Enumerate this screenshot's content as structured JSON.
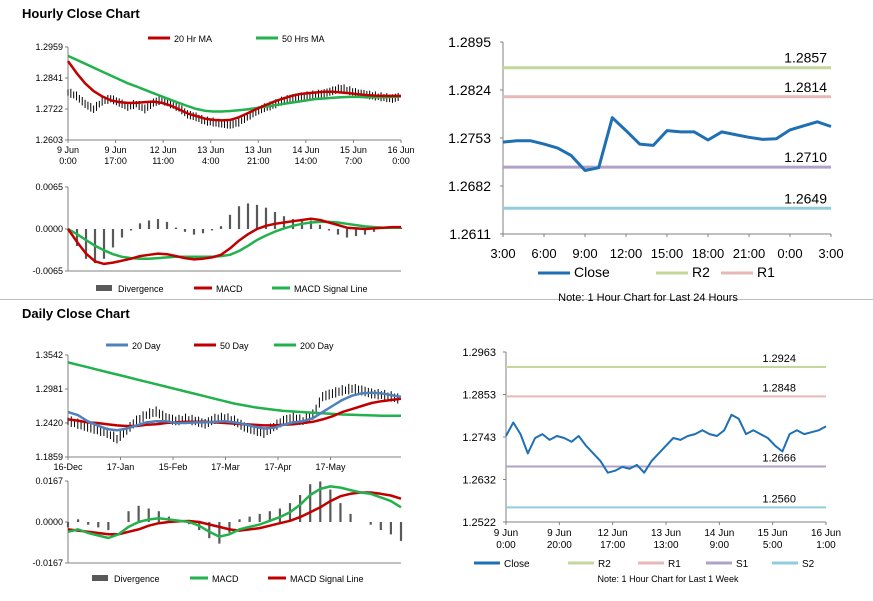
{
  "sections": {
    "hourly_title": "Hourly Close Chart",
    "daily_title": "Daily Close Chart"
  },
  "chart_data": [
    {
      "id": "hourly-price",
      "type": "line",
      "ylim": [
        1.2603,
        1.2959
      ],
      "yticks": [
        "1.2959",
        "1.2841",
        "1.2722",
        "1.2603"
      ],
      "xticks": [
        "9 Jun|0:00",
        "9 Jun|17:00",
        "12 Jun|11:00",
        "13 Jun|4:00",
        "13 Jun|21:00",
        "14 Jun|14:00",
        "15 Jun|7:00",
        "16 Jun|0:00"
      ],
      "legend": [
        "20 Hr MA",
        "50 Hrs MA"
      ],
      "colors": {
        "ma20": "#c00000",
        "ma50": "#22b14c",
        "bars": "#000000"
      },
      "close": [
        1.2785,
        1.277,
        1.274,
        1.272,
        1.275,
        1.276,
        1.2745,
        1.273,
        1.274,
        1.272,
        1.2745,
        1.2755,
        1.274,
        1.2725,
        1.27,
        1.269,
        1.2675,
        1.267,
        1.2665,
        1.266,
        1.267,
        1.269,
        1.271,
        1.2725,
        1.2735,
        1.275,
        1.276,
        1.2765,
        1.277,
        1.2775,
        1.278,
        1.279,
        1.28,
        1.279,
        1.278,
        1.2775,
        1.277,
        1.2765,
        1.276,
        1.277
      ],
      "ma20": [
        1.2905,
        1.286,
        1.282,
        1.279,
        1.277,
        1.2755,
        1.2748,
        1.2745,
        1.2745,
        1.2748,
        1.275,
        1.2745,
        1.2735,
        1.272,
        1.2705,
        1.2695,
        1.2685,
        1.268,
        1.2678,
        1.268,
        1.269,
        1.2705,
        1.272,
        1.2735,
        1.2748,
        1.276,
        1.277,
        1.2778,
        1.2782,
        1.2785,
        1.2788,
        1.2788,
        1.2785,
        1.2782,
        1.2778,
        1.2775,
        1.2773,
        1.2772,
        1.2772,
        1.2772
      ],
      "ma50": [
        1.2925,
        1.291,
        1.2895,
        1.288,
        1.2865,
        1.285,
        1.2835,
        1.282,
        1.2808,
        1.2795,
        1.2782,
        1.277,
        1.2757,
        1.2745,
        1.2733,
        1.2722,
        1.2715,
        1.2712,
        1.2712,
        1.2714,
        1.2717,
        1.272,
        1.2725,
        1.273,
        1.2735,
        1.274,
        1.2745,
        1.275,
        1.2755,
        1.276,
        1.2762,
        1.2765,
        1.2767,
        1.2768,
        1.2768,
        1.2767,
        1.2767,
        1.2767,
        1.2768,
        1.277
      ]
    },
    {
      "id": "hourly-macd",
      "type": "line",
      "ylim": [
        -0.0065,
        0.0065
      ],
      "yticks": [
        "0.0065",
        "0.0000",
        "-0.0065"
      ],
      "legend": [
        "Divergence",
        "MACD",
        "MACD Signal Line"
      ],
      "colors": {
        "divergence": "#595959",
        "macd": "#c00000",
        "signal": "#22b14c"
      },
      "macd": [
        0.0,
        -0.002,
        -0.0038,
        -0.005,
        -0.0054,
        -0.0052,
        -0.0049,
        -0.0046,
        -0.0042,
        -0.004,
        -0.0038,
        -0.0039,
        -0.0042,
        -0.0045,
        -0.0047,
        -0.0046,
        -0.0044,
        -0.004,
        -0.003,
        -0.0018,
        -0.0008,
        0.0,
        0.0005,
        0.0008,
        0.001,
        0.0012,
        0.0014,
        0.0016,
        0.0014,
        0.001,
        0.0006,
        0.0002,
        0.0001,
        0.0,
        0.0001,
        0.0002,
        0.0003,
        0.0003
      ],
      "signal": [
        0.0,
        -0.0008,
        -0.0017,
        -0.0026,
        -0.0033,
        -0.0039,
        -0.0043,
        -0.0045,
        -0.0046,
        -0.0046,
        -0.0045,
        -0.0044,
        -0.0043,
        -0.0043,
        -0.0043,
        -0.0043,
        -0.0043,
        -0.0042,
        -0.004,
        -0.0034,
        -0.0026,
        -0.0017,
        -0.001,
        -0.0004,
        0.0001,
        0.0005,
        0.0008,
        0.001,
        0.0011,
        0.0011,
        0.001,
        0.0008,
        0.0006,
        0.0004,
        0.0003,
        0.0002,
        0.0002,
        0.0002
      ]
    },
    {
      "id": "hourly-levels",
      "type": "line",
      "ylim": [
        1.2611,
        1.2895
      ],
      "yticks": [
        "1.2895",
        "1.2824",
        "1.2753",
        "1.2682",
        "1.2611"
      ],
      "xticks": [
        "3:00",
        "6:00",
        "9:00",
        "12:00",
        "15:00",
        "18:00",
        "21:00",
        "0:00",
        "3:00"
      ],
      "legend": [
        "Close",
        "R2",
        "R1"
      ],
      "note": "Note: 1 Hour Chart for Last 24 Hours",
      "levels": [
        {
          "label": "1.2857",
          "value": 1.2857,
          "color": "#c4d79b"
        },
        {
          "label": "1.2814",
          "value": 1.2814,
          "color": "#e6b9b8"
        },
        {
          "label": "1.2710",
          "value": 1.271,
          "color": "#b1a0c7"
        },
        {
          "label": "1.2649",
          "value": 1.2649,
          "color": "#93cddd"
        }
      ],
      "colors": {
        "close": "#1f6fb4"
      },
      "close": [
        1.2747,
        1.2749,
        1.2749,
        1.2744,
        1.2738,
        1.2727,
        1.2705,
        1.2709,
        1.2783,
        1.2764,
        1.2744,
        1.2742,
        1.2764,
        1.2762,
        1.2762,
        1.275,
        1.2762,
        1.2758,
        1.2754,
        1.2751,
        1.2752,
        1.2765,
        1.2771,
        1.2777,
        1.277
      ]
    },
    {
      "id": "daily-price",
      "type": "line",
      "ylim": [
        1.1859,
        1.3542
      ],
      "yticks": [
        "1.3542",
        "1.2981",
        "1.2420",
        "1.1859"
      ],
      "xticks": [
        "16-Dec",
        "17-Jan",
        "15-Feb",
        "17-Mar",
        "17-Apr",
        "17-May"
      ],
      "legend": [
        "20 Day",
        "50 Day",
        "200 Day"
      ],
      "colors": {
        "d20": "#4f81bd",
        "d50": "#c00000",
        "d200": "#22b14c",
        "bars": "#000000"
      },
      "close": [
        1.245,
        1.24,
        1.235,
        1.23,
        1.225,
        1.215,
        1.23,
        1.245,
        1.255,
        1.26,
        1.25,
        1.245,
        1.248,
        1.245,
        1.24,
        1.248,
        1.25,
        1.245,
        1.235,
        1.23,
        1.225,
        1.235,
        1.245,
        1.25,
        1.245,
        1.255,
        1.285,
        1.29,
        1.295,
        1.298,
        1.295,
        1.29,
        1.288,
        1.285,
        1.28
      ],
      "d20": [
        1.26,
        1.255,
        1.245,
        1.238,
        1.232,
        1.23,
        1.233,
        1.238,
        1.243,
        1.245,
        1.245,
        1.242,
        1.242,
        1.243,
        1.243,
        1.244,
        1.245,
        1.243,
        1.24,
        1.236,
        1.233,
        1.234,
        1.239,
        1.243,
        1.245,
        1.25,
        1.26,
        1.27,
        1.28,
        1.287,
        1.291,
        1.292,
        1.291,
        1.288,
        1.285
      ],
      "d50": [
        1.248,
        1.246,
        1.243,
        1.242,
        1.24,
        1.238,
        1.237,
        1.237,
        1.239,
        1.24,
        1.242,
        1.243,
        1.244,
        1.244,
        1.244,
        1.243,
        1.242,
        1.241,
        1.24,
        1.239,
        1.238,
        1.238,
        1.239,
        1.24,
        1.242,
        1.244,
        1.248,
        1.253,
        1.26,
        1.265,
        1.27,
        1.275,
        1.278,
        1.28,
        1.282
      ],
      "d200": [
        1.342,
        1.338,
        1.334,
        1.33,
        1.326,
        1.322,
        1.318,
        1.314,
        1.31,
        1.306,
        1.302,
        1.298,
        1.294,
        1.29,
        1.286,
        1.282,
        1.278,
        1.274,
        1.271,
        1.268,
        1.266,
        1.264,
        1.262,
        1.261,
        1.26,
        1.259,
        1.258,
        1.257,
        1.256,
        1.2555,
        1.255,
        1.2545,
        1.254,
        1.254,
        1.254
      ]
    },
    {
      "id": "daily-macd",
      "type": "line",
      "ylim": [
        -0.0167,
        0.0167
      ],
      "yticks": [
        "0.0167",
        "0.0000",
        "-0.0167"
      ],
      "legend": [
        "Divergence",
        "MACD",
        "MACD Signal Line"
      ],
      "colors": {
        "divergence": "#595959",
        "macd": "#22b14c",
        "signal": "#c00000"
      },
      "macd": [
        -0.004,
        -0.003,
        -0.0045,
        -0.0055,
        -0.0065,
        -0.005,
        -0.002,
        0.0,
        0.001,
        0.0015,
        0.001,
        0.0005,
        0.0,
        -0.0015,
        -0.004,
        -0.006,
        -0.005,
        -0.003,
        -0.002,
        -0.001,
        0.0005,
        0.002,
        0.004,
        0.007,
        0.011,
        0.0135,
        0.0145,
        0.014,
        0.013,
        0.012,
        0.0115,
        0.01,
        0.0085,
        0.006
      ],
      "signal": [
        -0.003,
        -0.0035,
        -0.004,
        -0.0045,
        -0.005,
        -0.005,
        -0.004,
        -0.003,
        -0.0015,
        -0.0005,
        0.0,
        0.0003,
        0.0004,
        0.0,
        -0.001,
        -0.002,
        -0.003,
        -0.0035,
        -0.003,
        -0.0025,
        -0.0015,
        -0.0005,
        0.0005,
        0.002,
        0.004,
        0.006,
        0.0085,
        0.0105,
        0.0115,
        0.012,
        0.012,
        0.0115,
        0.0108,
        0.0095
      ]
    },
    {
      "id": "daily-levels",
      "type": "line",
      "ylim": [
        1.2522,
        1.2963
      ],
      "yticks": [
        "1.2963",
        "1.2853",
        "1.2743",
        "1.2632",
        "1.2522"
      ],
      "xticks": [
        "9 Jun|0:00",
        "9 Jun|20:00",
        "12 Jun|17:00",
        "13 Jun|13:00",
        "14 Jun|9:00",
        "15 Jun|5:00",
        "16 Jun|1:00"
      ],
      "legend": [
        "Close",
        "R2",
        "R1",
        "S1",
        "S2"
      ],
      "note": "Note: 1 Hour Chart for Last 1 Week",
      "levels": [
        {
          "label": "1.2924",
          "value": 1.2924,
          "color": "#c4d79b"
        },
        {
          "label": "1.2848",
          "value": 1.2848,
          "color": "#e6b9b8"
        },
        {
          "label": "1.2666",
          "value": 1.2666,
          "color": "#b1a0c7"
        },
        {
          "label": "1.2560",
          "value": 1.256,
          "color": "#93cddd"
        }
      ],
      "colors": {
        "close": "#1f6fb4"
      },
      "close": [
        1.2745,
        1.278,
        1.275,
        1.27,
        1.274,
        1.275,
        1.2735,
        1.2745,
        1.274,
        1.273,
        1.2745,
        1.272,
        1.27,
        1.268,
        1.265,
        1.2655,
        1.2665,
        1.266,
        1.267,
        1.265,
        1.268,
        1.27,
        1.272,
        1.274,
        1.2735,
        1.2745,
        1.275,
        1.276,
        1.275,
        1.2745,
        1.276,
        1.28,
        1.279,
        1.275,
        1.276,
        1.275,
        1.274,
        1.272,
        1.2705,
        1.275,
        1.276,
        1.275,
        1.2755,
        1.276,
        1.277
      ]
    }
  ]
}
